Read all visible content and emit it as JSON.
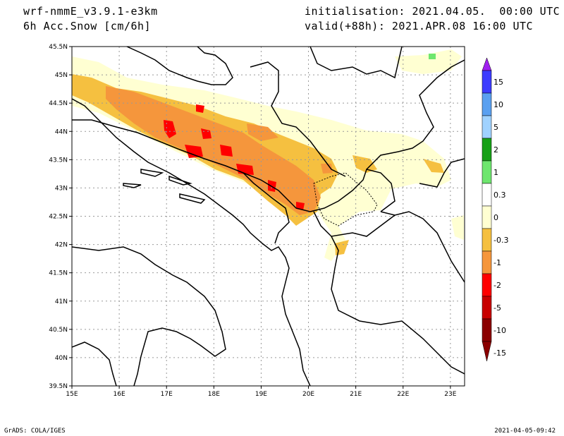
{
  "header": {
    "model": "wrf-nmmE_v3.9.1-e3km",
    "variable": "6h Acc.Snow [cm/6h]",
    "init": "initialisation: 2021.04.05.  00:00 UTC",
    "valid": "valid(+88h): 2021.APR.08 16:00 UTC"
  },
  "footer": {
    "left": "GrADS: COLA/IGES",
    "right": "2021-04-05-09:42"
  },
  "map": {
    "lon_labels": [
      "15E",
      "16E",
      "17E",
      "18E",
      "19E",
      "20E",
      "21E",
      "22E",
      "23E"
    ],
    "lat_labels": [
      "45.5N",
      "45N",
      "44.5N",
      "44N",
      "43.5N",
      "43N",
      "42.5N",
      "42N",
      "41.5N",
      "41N",
      "40.5N",
      "40N",
      "39.5N"
    ],
    "lon_range": [
      15,
      23.3
    ],
    "lat_range": [
      39.5,
      45.5
    ],
    "grid": "dotted"
  },
  "legend": {
    "labels": [
      "15",
      "10",
      "5",
      "2",
      "1",
      "0.3",
      "0",
      "-0.3",
      "-1",
      "-2",
      "-5",
      "-10",
      "-15"
    ],
    "colors": [
      "#a020f0",
      "#3c3cff",
      "#5aa0f0",
      "#a0d2ff",
      "#17a017",
      "#6ee66e",
      "#ffffff",
      "#ffffd2",
      "#f5c040",
      "#f5963c",
      "#ff0000",
      "#c80000",
      "#8b0000"
    ]
  }
}
